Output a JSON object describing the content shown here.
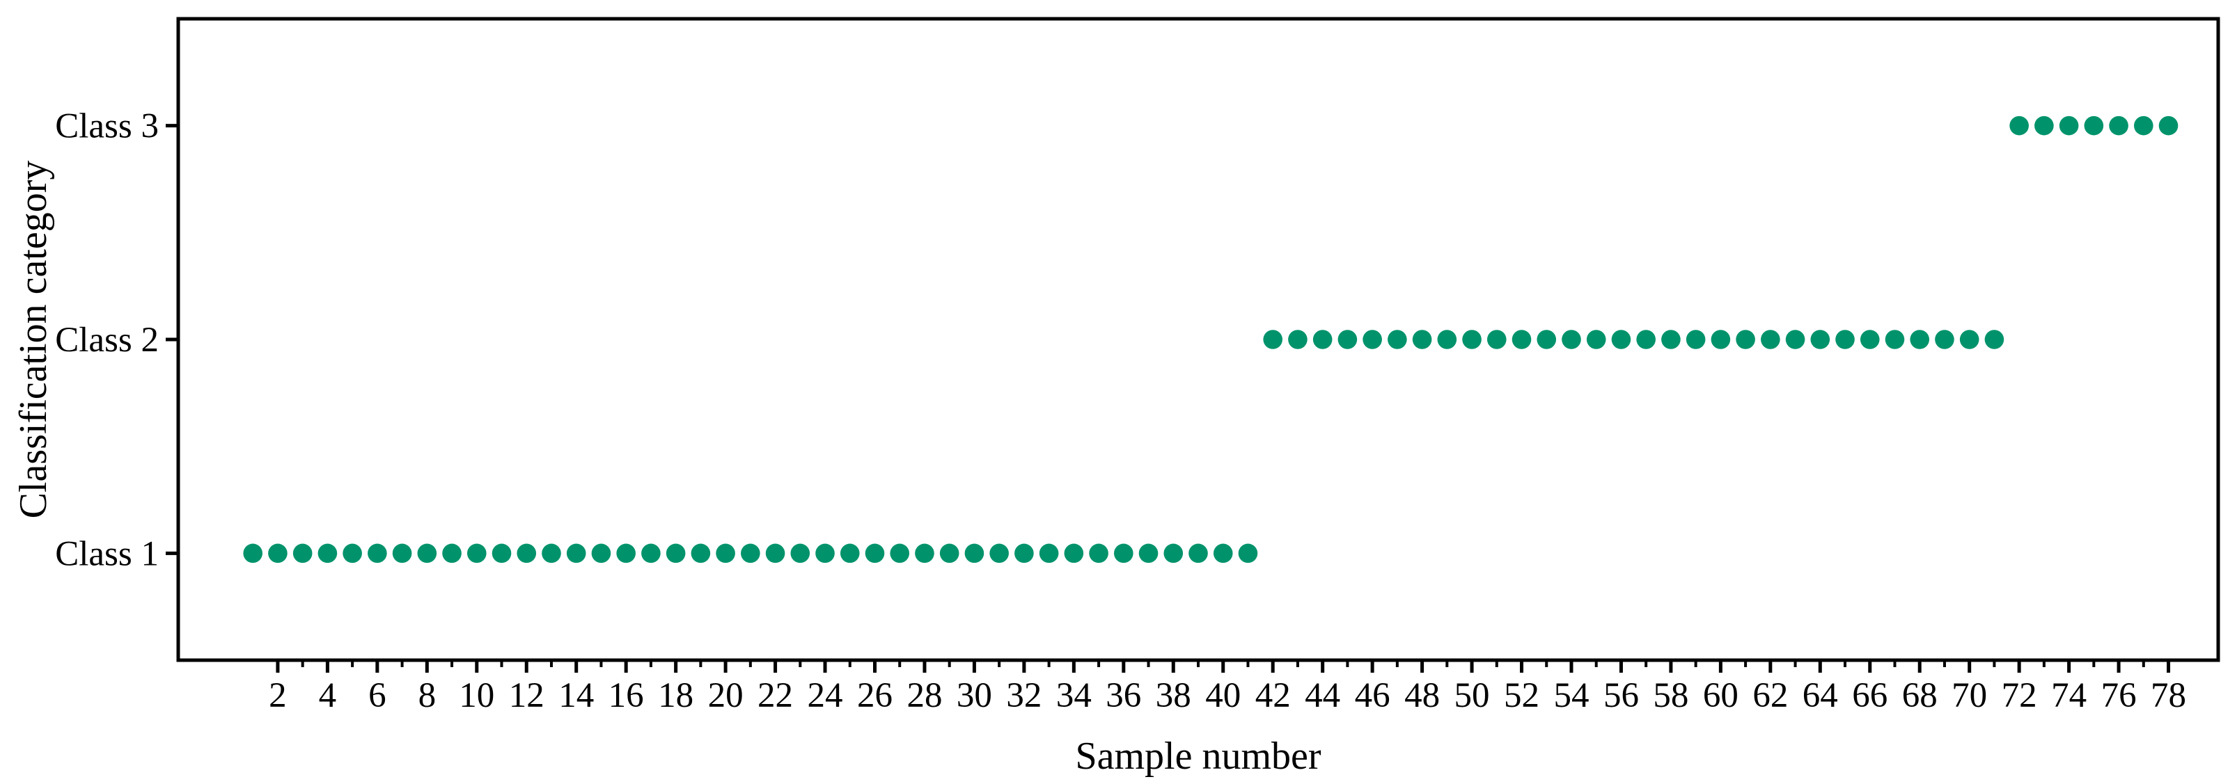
{
  "chart_data": {
    "type": "scatter",
    "title": "",
    "xlabel": "Sample number",
    "ylabel": "Classification category",
    "xlim": [
      -2,
      80
    ],
    "ylim": [
      0.5,
      3.5
    ],
    "grid": false,
    "legend": "none",
    "frame": true,
    "marker_color": "#00936B",
    "axis_color": "#000000",
    "y_ticks": [
      {
        "value": 1,
        "label": "Class 1"
      },
      {
        "value": 2,
        "label": "Class 2"
      },
      {
        "value": 3,
        "label": "Class 3"
      }
    ],
    "x_major_ticks": [
      2,
      4,
      6,
      8,
      10,
      12,
      14,
      16,
      18,
      20,
      22,
      24,
      26,
      28,
      30,
      32,
      34,
      36,
      38,
      40,
      42,
      44,
      46,
      48,
      50,
      52,
      54,
      56,
      58,
      60,
      62,
      64,
      66,
      68,
      70,
      72,
      74,
      76,
      78
    ],
    "x_minor_ticks": [
      3,
      5,
      7,
      9,
      11,
      13,
      15,
      17,
      19,
      21,
      23,
      25,
      27,
      29,
      31,
      33,
      35,
      37,
      39,
      41,
      43,
      45,
      47,
      49,
      51,
      53,
      55,
      57,
      59,
      61,
      63,
      65,
      67,
      69,
      71,
      73,
      75,
      77
    ],
    "series": [
      {
        "name": "Class 1",
        "y": 1,
        "sample_start": 1,
        "sample_end": 41,
        "count": 41
      },
      {
        "name": "Class 2",
        "y": 2,
        "sample_start": 42,
        "sample_end": 71,
        "count": 30
      },
      {
        "name": "Class 3",
        "y": 3,
        "sample_start": 72,
        "sample_end": 78,
        "count": 7
      }
    ],
    "points": [
      [
        1,
        1
      ],
      [
        2,
        1
      ],
      [
        3,
        1
      ],
      [
        4,
        1
      ],
      [
        5,
        1
      ],
      [
        6,
        1
      ],
      [
        7,
        1
      ],
      [
        8,
        1
      ],
      [
        9,
        1
      ],
      [
        10,
        1
      ],
      [
        11,
        1
      ],
      [
        12,
        1
      ],
      [
        13,
        1
      ],
      [
        14,
        1
      ],
      [
        15,
        1
      ],
      [
        16,
        1
      ],
      [
        17,
        1
      ],
      [
        18,
        1
      ],
      [
        19,
        1
      ],
      [
        20,
        1
      ],
      [
        21,
        1
      ],
      [
        22,
        1
      ],
      [
        23,
        1
      ],
      [
        24,
        1
      ],
      [
        25,
        1
      ],
      [
        26,
        1
      ],
      [
        27,
        1
      ],
      [
        28,
        1
      ],
      [
        29,
        1
      ],
      [
        30,
        1
      ],
      [
        31,
        1
      ],
      [
        32,
        1
      ],
      [
        33,
        1
      ],
      [
        34,
        1
      ],
      [
        35,
        1
      ],
      [
        36,
        1
      ],
      [
        37,
        1
      ],
      [
        38,
        1
      ],
      [
        39,
        1
      ],
      [
        40,
        1
      ],
      [
        41,
        1
      ],
      [
        42,
        2
      ],
      [
        43,
        2
      ],
      [
        44,
        2
      ],
      [
        45,
        2
      ],
      [
        46,
        2
      ],
      [
        47,
        2
      ],
      [
        48,
        2
      ],
      [
        49,
        2
      ],
      [
        50,
        2
      ],
      [
        51,
        2
      ],
      [
        52,
        2
      ],
      [
        53,
        2
      ],
      [
        54,
        2
      ],
      [
        55,
        2
      ],
      [
        56,
        2
      ],
      [
        57,
        2
      ],
      [
        58,
        2
      ],
      [
        59,
        2
      ],
      [
        60,
        2
      ],
      [
        61,
        2
      ],
      [
        62,
        2
      ],
      [
        63,
        2
      ],
      [
        64,
        2
      ],
      [
        65,
        2
      ],
      [
        66,
        2
      ],
      [
        67,
        2
      ],
      [
        68,
        2
      ],
      [
        69,
        2
      ],
      [
        70,
        2
      ],
      [
        71,
        2
      ],
      [
        72,
        3
      ],
      [
        73,
        3
      ],
      [
        74,
        3
      ],
      [
        75,
        3
      ],
      [
        76,
        3
      ],
      [
        77,
        3
      ],
      [
        78,
        3
      ]
    ]
  }
}
